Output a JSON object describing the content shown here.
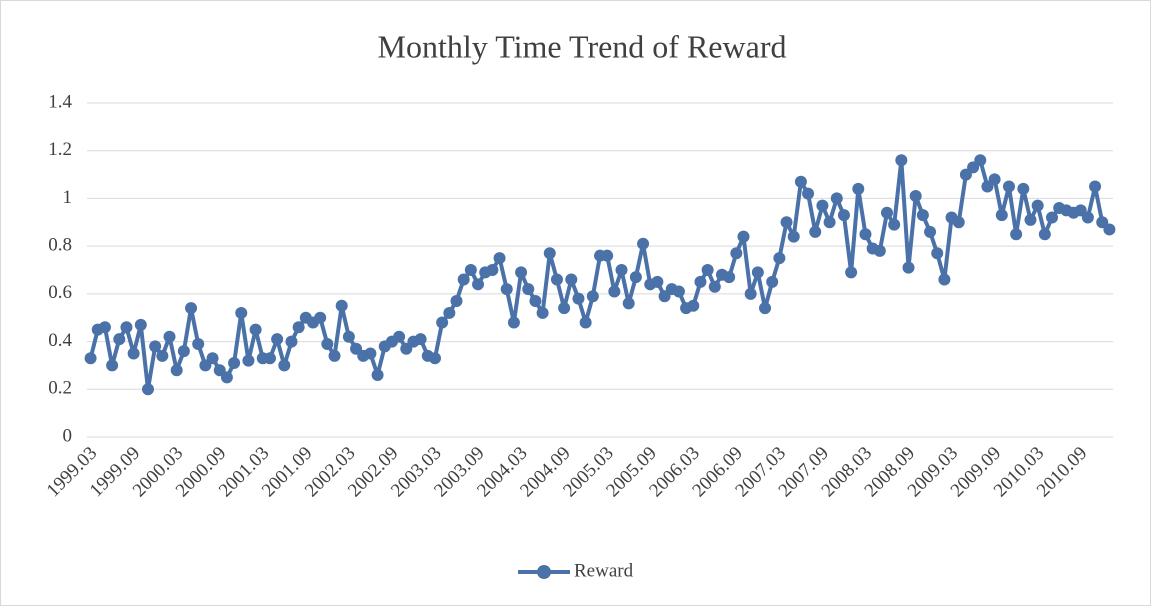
{
  "chart_data": {
    "type": "line",
    "title": "Monthly Time Trend of Reward",
    "categories": [
      "1999.03",
      null,
      null,
      null,
      null,
      null,
      "1999.09",
      null,
      null,
      null,
      null,
      null,
      "2000.03",
      null,
      null,
      null,
      null,
      null,
      "2000.09",
      null,
      null,
      null,
      null,
      null,
      "2001.03",
      null,
      null,
      null,
      null,
      null,
      "2001.09",
      null,
      null,
      null,
      null,
      null,
      "2002.03",
      null,
      null,
      null,
      null,
      null,
      "2002.09",
      null,
      null,
      null,
      null,
      null,
      "2003.03",
      null,
      null,
      null,
      null,
      null,
      "2003.09",
      null,
      null,
      null,
      null,
      null,
      "2004.03",
      null,
      null,
      null,
      null,
      null,
      "2004.09",
      null,
      null,
      null,
      null,
      null,
      "2005.03",
      null,
      null,
      null,
      null,
      null,
      "2005.09",
      null,
      null,
      null,
      null,
      null,
      "2006.03",
      null,
      null,
      null,
      null,
      null,
      "2006.09",
      null,
      null,
      null,
      null,
      null,
      "2007.03",
      null,
      null,
      null,
      null,
      null,
      "2007.09",
      null,
      null,
      null,
      null,
      null,
      "2008.03",
      null,
      null,
      null,
      null,
      null,
      "2008.09",
      null,
      null,
      null,
      null,
      null,
      "2009.03",
      null,
      null,
      null,
      null,
      null,
      "2009.09",
      null,
      null,
      null,
      null,
      null,
      "2010.03",
      null,
      null,
      null,
      null,
      null,
      "2010.09",
      null,
      null,
      null,
      null
    ],
    "series": [
      {
        "name": "Reward",
        "color": "#4a72a8",
        "values": [
          0.33,
          0.45,
          0.46,
          0.3,
          0.41,
          0.46,
          0.35,
          0.47,
          0.2,
          0.38,
          0.34,
          0.42,
          0.28,
          0.36,
          0.54,
          0.39,
          0.3,
          0.33,
          0.28,
          0.25,
          0.31,
          0.52,
          0.32,
          0.45,
          0.33,
          0.33,
          0.41,
          0.3,
          0.4,
          0.46,
          0.5,
          0.48,
          0.5,
          0.39,
          0.34,
          0.55,
          0.42,
          0.37,
          0.34,
          0.35,
          0.26,
          0.38,
          0.4,
          0.42,
          0.37,
          0.4,
          0.41,
          0.34,
          0.33,
          0.48,
          0.52,
          0.57,
          0.66,
          0.7,
          0.64,
          0.69,
          0.7,
          0.75,
          0.62,
          0.48,
          0.69,
          0.62,
          0.57,
          0.52,
          0.77,
          0.66,
          0.54,
          0.66,
          0.58,
          0.48,
          0.59,
          0.76,
          0.76,
          0.61,
          0.7,
          0.56,
          0.67,
          0.81,
          0.64,
          0.65,
          0.59,
          0.62,
          0.61,
          0.54,
          0.55,
          0.65,
          0.7,
          0.63,
          0.68,
          0.67,
          0.77,
          0.84,
          0.6,
          0.69,
          0.54,
          0.65,
          0.75,
          0.9,
          0.84,
          1.07,
          1.02,
          0.86,
          0.97,
          0.9,
          1.0,
          0.93,
          0.69,
          1.04,
          0.85,
          0.79,
          0.78,
          0.94,
          0.89,
          1.16,
          0.71,
          1.01,
          0.93,
          0.86,
          0.77,
          0.66,
          0.92,
          0.9,
          1.1,
          1.13,
          1.16,
          1.05,
          1.08,
          0.93,
          1.05,
          0.85,
          1.04,
          0.91,
          0.97,
          0.85,
          0.92,
          0.96,
          0.95,
          0.94,
          0.95,
          0.92,
          1.05,
          0.9,
          0.87
        ]
      }
    ],
    "ylim": [
      0,
      1.4
    ],
    "yticks": [
      0,
      0.2,
      0.4,
      0.6,
      0.8,
      1,
      1.2,
      1.4
    ],
    "grid": true,
    "legend": "bottom"
  }
}
